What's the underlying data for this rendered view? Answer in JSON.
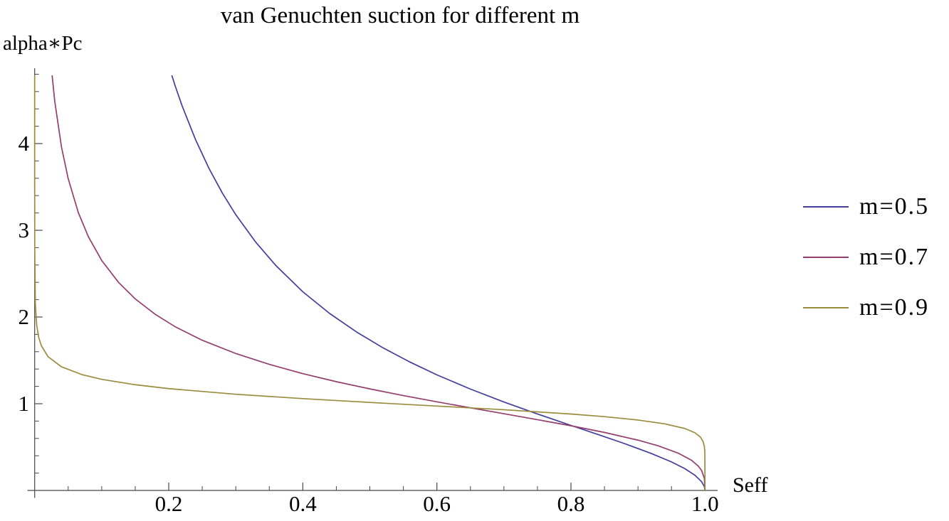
{
  "chart_data": {
    "type": "line",
    "title": "van Genuchten suction for different m",
    "xlabel": "Seff",
    "ylabel": "alpha∗Pc",
    "xlim": [
      0,
      1.02
    ],
    "ylim": [
      0,
      4.78
    ],
    "grid": false,
    "legend_position": "right-outside",
    "x_ticks": {
      "major_values": [
        0.2,
        0.4,
        0.6,
        0.8,
        1.0
      ],
      "major_labels": [
        "0.2",
        "0.4",
        "0.6",
        "0.8",
        "1.0"
      ],
      "minor_step": 0.05
    },
    "y_ticks": {
      "major_values": [
        1,
        2,
        3,
        4
      ],
      "major_labels": [
        "1",
        "2",
        "3",
        "4"
      ],
      "minor_step": 0.2
    },
    "series": [
      {
        "name": "m=0.5",
        "color": "#413E9E",
        "formula": "alpha*Pc = (Seff^(-1/m) - 1)^(1-m)",
        "x": [
          0.195,
          0.2,
          0.21,
          0.22,
          0.24,
          0.26,
          0.28,
          0.3,
          0.33,
          0.36,
          0.4,
          0.44,
          0.48,
          0.52,
          0.56,
          0.6,
          0.65,
          0.7,
          0.75,
          0.8,
          0.84,
          0.88,
          0.92,
          0.95,
          0.97,
          0.985,
          0.995,
          0.999,
          1.0
        ],
        "y": [
          5.03,
          4.899,
          4.656,
          4.434,
          4.045,
          3.714,
          3.429,
          3.18,
          2.861,
          2.592,
          2.291,
          2.041,
          1.828,
          1.643,
          1.48,
          1.333,
          1.169,
          1.02,
          0.882,
          0.75,
          0.646,
          0.54,
          0.426,
          0.329,
          0.251,
          0.175,
          0.1,
          0.045,
          0
        ]
      },
      {
        "name": "m=0.7",
        "color": "#953D6E",
        "formula": "alpha*Pc = (Seff^(-1/m) - 1)^(1-m)",
        "x": [
          0.02,
          0.024,
          0.03,
          0.04,
          0.05,
          0.065,
          0.08,
          0.1,
          0.125,
          0.15,
          0.18,
          0.21,
          0.25,
          0.3,
          0.35,
          0.4,
          0.45,
          0.5,
          0.55,
          0.6,
          0.65,
          0.7,
          0.75,
          0.8,
          0.85,
          0.9,
          0.93,
          0.96,
          0.98,
          0.99,
          0.995,
          0.999,
          1.0
        ],
        "y": [
          5.34,
          4.94,
          4.485,
          3.961,
          3.596,
          3.207,
          2.928,
          2.652,
          2.4,
          2.209,
          2.03,
          1.886,
          1.732,
          1.579,
          1.454,
          1.347,
          1.254,
          1.171,
          1.094,
          1.022,
          0.953,
          0.885,
          0.816,
          0.746,
          0.669,
          0.58,
          0.515,
          0.43,
          0.347,
          0.281,
          0.228,
          0.14,
          0
        ]
      },
      {
        "name": "m=0.9",
        "color": "#998C3D",
        "formula": "alpha*Pc = (Seff^(-1/m) - 1)^(1-m)",
        "x": [
          1e-07,
          1e-06,
          1e-05,
          0.0001,
          0.001,
          0.003,
          0.006,
          0.01,
          0.02,
          0.04,
          0.07,
          0.1,
          0.15,
          0.2,
          0.3,
          0.4,
          0.5,
          0.6,
          0.7,
          0.8,
          0.85,
          0.9,
          0.94,
          0.97,
          0.985,
          0.993,
          0.997,
          0.999,
          0.9997,
          1.0
        ],
        "y": [
          5.99,
          4.648,
          3.594,
          2.783,
          2.154,
          1.907,
          1.765,
          1.668,
          1.542,
          1.426,
          1.337,
          1.281,
          1.219,
          1.174,
          1.109,
          1.059,
          1.015,
          0.973,
          0.931,
          0.881,
          0.851,
          0.812,
          0.768,
          0.714,
          0.665,
          0.616,
          0.566,
          0.507,
          0.449,
          0
        ]
      }
    ]
  },
  "legend": {
    "items": [
      {
        "label": "m=0.5",
        "color": "#413E9E"
      },
      {
        "label": "m=0.7",
        "color": "#953D6E"
      },
      {
        "label": "m=0.9",
        "color": "#998C3D"
      }
    ]
  },
  "colors": {
    "axis": "#474747",
    "text": "#000000",
    "background": "#ffffff"
  }
}
